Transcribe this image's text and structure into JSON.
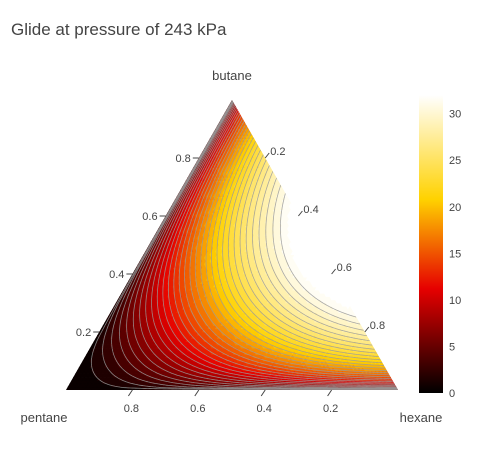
{
  "chart_data": {
    "type": "ternary-contour",
    "title": "Glide at pressure of 243 kPa",
    "vertices": {
      "top": "butane",
      "left": "pentane",
      "right": "hexane"
    },
    "axis_ticks": {
      "top_axis": [
        "0.2",
        "0.4",
        "0.6",
        "0.8"
      ],
      "left_axis": [
        "0.2",
        "0.4",
        "0.6",
        "0.8"
      ],
      "bottom_axis": [
        "0.8",
        "0.6",
        "0.4",
        "0.2"
      ]
    },
    "axis_tick_values": [
      0.2,
      0.4,
      0.6,
      0.8
    ],
    "colorbar": {
      "range": [
        0,
        32
      ],
      "ticks": [
        "0",
        "5",
        "10",
        "15",
        "20",
        "25",
        "30"
      ],
      "tick_values": [
        0,
        5,
        10,
        15,
        20,
        25,
        30
      ],
      "colorscale": "hot",
      "colors": [
        "#000000",
        "#e60000",
        "#ffd200",
        "#ffffff"
      ]
    },
    "contour": {
      "description_levels": 32,
      "max_glide_approx": 32,
      "min_glide_approx": 0
    }
  }
}
